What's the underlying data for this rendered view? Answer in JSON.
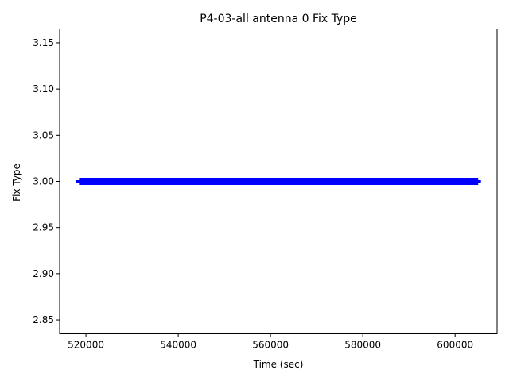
{
  "chart_data": {
    "type": "line",
    "title": "P4-03-all antenna 0 Fix Type",
    "xlabel": "Time (sec)",
    "ylabel": "Fix Type",
    "xlim": [
      514300,
      609100
    ],
    "ylim": [
      2.835,
      3.165
    ],
    "xticks": [
      520000,
      540000,
      560000,
      580000,
      600000
    ],
    "yticks": [
      2.85,
      2.9,
      2.95,
      3.0,
      3.05,
      3.1,
      3.15
    ],
    "ytick_labels": [
      "2.85",
      "2.90",
      "2.95",
      "3.00",
      "3.05",
      "3.10",
      "3.15"
    ],
    "grid": false,
    "series": [
      {
        "x": [
          517900,
          605600
        ],
        "y": [
          3.0,
          3.0
        ],
        "color": "#0000ff",
        "style": "thin"
      },
      {
        "x": [
          518500,
          605000
        ],
        "y": [
          3.0,
          3.0
        ],
        "color": "#0000ff",
        "style": "thick"
      }
    ]
  }
}
